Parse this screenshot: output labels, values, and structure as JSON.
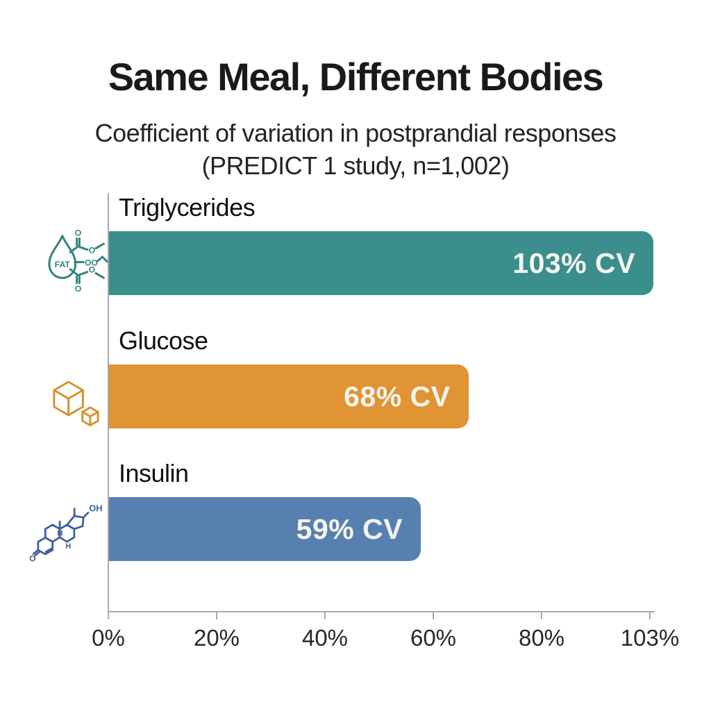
{
  "page": {
    "background": "#ffffff"
  },
  "header": {
    "title": "Same Meal, Different Bodies",
    "subtitle_line1": "Coefficient of variation in postprandial responses",
    "subtitle_line2": "(PREDICT 1 study, n=1,002)"
  },
  "chart_data": {
    "type": "bar",
    "orientation": "horizontal",
    "title": "Same Meal, Different Bodies",
    "subtitle": "Coefficient of variation in postprandial responses (PREDICT 1 study, n=1,002)",
    "categories": [
      "Triglycerides",
      "Glucose",
      "Insulin"
    ],
    "values": [
      103,
      68,
      59
    ],
    "value_labels": [
      "103% CV",
      "68% CV",
      "59% CV"
    ],
    "bar_colors": [
      "#3a8f8c",
      "#e09434",
      "#5680b0"
    ],
    "icon_colors": [
      "#35837f",
      "#d7922d",
      "#3d5f9c"
    ],
    "icon_names": [
      "fat-molecule-icon",
      "sugar-cubes-icon",
      "insulin-molecule-icon"
    ],
    "x_ticks": [
      "0%",
      "20%",
      "40%",
      "60%",
      "80%",
      "103%"
    ],
    "xlim": [
      0,
      103
    ],
    "xlabel": "",
    "ylabel": "",
    "grid": false,
    "legend": "none",
    "axis_color": "#a9a9a9"
  },
  "icon_text": {
    "fat_label": "FAT",
    "oxygen": "O",
    "hydroxyl": "OH",
    "hydrogen": "H"
  }
}
